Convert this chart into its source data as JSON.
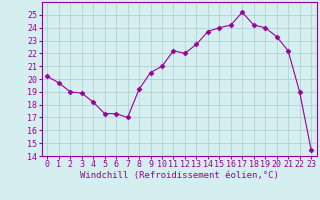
{
  "x": [
    0,
    1,
    2,
    3,
    4,
    5,
    6,
    7,
    8,
    9,
    10,
    11,
    12,
    13,
    14,
    15,
    16,
    17,
    18,
    19,
    20,
    21,
    22,
    23
  ],
  "y": [
    20.2,
    19.7,
    19.0,
    18.9,
    18.2,
    17.3,
    17.3,
    17.0,
    19.2,
    20.5,
    21.0,
    22.2,
    22.0,
    22.7,
    23.7,
    24.0,
    24.2,
    25.2,
    24.2,
    24.0,
    23.3,
    22.2,
    19.0,
    14.5
  ],
  "line_color": "#990099",
  "marker": "D",
  "markersize": 2.5,
  "linewidth": 0.8,
  "bg_color": "#d5eef0",
  "grid_color": "#aacccc",
  "xlabel": "Windchill (Refroidissement éolien,°C)",
  "xlabel_color": "#990099",
  "xlabel_fontsize": 6.5,
  "tick_color": "#990099",
  "tick_fontsize": 6.0,
  "ylim": [
    14,
    26
  ],
  "yticks": [
    14,
    15,
    16,
    17,
    18,
    19,
    20,
    21,
    22,
    23,
    24,
    25
  ],
  "xticks": [
    0,
    1,
    2,
    3,
    4,
    5,
    6,
    7,
    8,
    9,
    10,
    11,
    12,
    13,
    14,
    15,
    16,
    17,
    18,
    19,
    20,
    21,
    22,
    23
  ]
}
